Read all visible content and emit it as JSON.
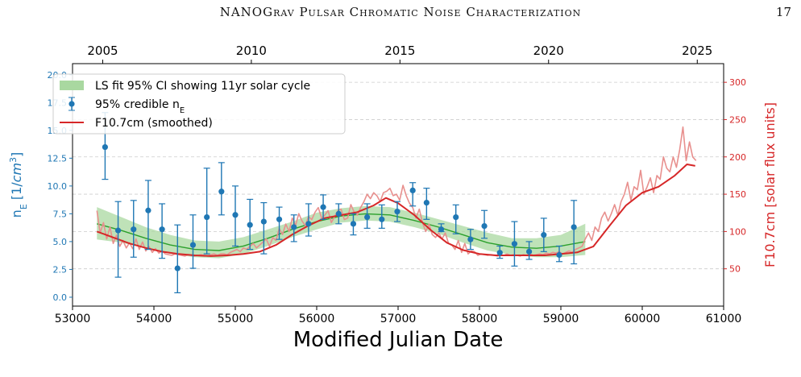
{
  "header": {
    "running_title": "NANOGrav Pulsar Chromatic Noise Characterization",
    "page_number": "17"
  },
  "chart_data": {
    "type": "scatter",
    "title": "",
    "xlabel": "Modified Julian Date",
    "ylabel_left": "n_E [1/cm^3]",
    "ylabel_right": "F10.7cm [solar flux units]",
    "xlim": [
      53000,
      61000
    ],
    "ylim_left": [
      -0.8,
      21.0
    ],
    "ylim_right": [
      0,
      325
    ],
    "xticks": [
      53000,
      54000,
      55000,
      56000,
      57000,
      58000,
      59000,
      60000,
      61000
    ],
    "yticks_left": [
      0.0,
      2.5,
      5.0,
      7.5,
      10.0,
      12.5,
      15.0,
      17.5,
      20.0
    ],
    "yticks_right": [
      50,
      100,
      150,
      200,
      250,
      300
    ],
    "top_axis": {
      "label": "",
      "ticks": [
        "2005",
        "2010",
        "2015",
        "2020",
        "2025"
      ],
      "mjd": [
        53371,
        55197,
        57023,
        58849,
        60676
      ]
    },
    "grid": true,
    "legend_position": "top-left",
    "legend": [
      {
        "label": "LS fit 95% CI showing 11yr solar cycle",
        "kind": "band",
        "color": "#a9d8a0"
      },
      {
        "label": "95% credible n",
        "subscript": "E",
        "kind": "errorbar",
        "color": "#1f77b4"
      },
      {
        "label": "F10.7cm (smoothed)",
        "kind": "line",
        "color": "#d62728"
      }
    ],
    "series": [
      {
        "name": "95% credible nE",
        "axis": "left",
        "x": [
          53400,
          53560,
          53750,
          53930,
          54100,
          54290,
          54480,
          54650,
          54830,
          55000,
          55180,
          55350,
          55540,
          55720,
          55900,
          56080,
          56270,
          56450,
          56620,
          56800,
          56990,
          57180,
          57350,
          57530,
          57710,
          57890,
          58060,
          58250,
          58430,
          58610,
          58790,
          58980,
          59160
        ],
        "y": [
          13.5,
          6.0,
          6.1,
          7.8,
          6.1,
          2.6,
          4.7,
          7.2,
          9.5,
          7.4,
          6.5,
          6.8,
          7.0,
          6.3,
          6.6,
          8.1,
          7.5,
          6.6,
          7.2,
          7.0,
          7.7,
          9.6,
          8.5,
          6.1,
          7.2,
          5.2,
          6.4,
          4.0,
          4.8,
          4.1,
          5.6,
          3.8,
          6.3
        ],
        "lower": [
          10.6,
          1.8,
          3.6,
          4.3,
          3.5,
          0.4,
          2.6,
          3.9,
          7.4,
          4.6,
          4.3,
          3.9,
          5.2,
          5.0,
          5.5,
          7.0,
          6.6,
          5.6,
          6.2,
          6.2,
          6.8,
          8.2,
          7.0,
          5.9,
          5.7,
          4.3,
          5.3,
          3.5,
          2.8,
          3.4,
          4.1,
          3.2,
          3.0
        ],
        "upper": [
          16.6,
          8.6,
          8.7,
          10.5,
          8.4,
          6.5,
          7.4,
          11.6,
          12.1,
          10.0,
          8.8,
          8.5,
          8.1,
          7.4,
          8.4,
          9.2,
          8.4,
          7.5,
          8.4,
          8.3,
          8.6,
          10.3,
          9.8,
          6.6,
          8.3,
          6.1,
          7.8,
          4.6,
          6.8,
          5.0,
          7.1,
          4.6,
          8.7
        ],
        "color": "#1f77b4"
      },
      {
        "name": "LS fit",
        "axis": "left",
        "x": [
          53300,
          53600,
          53900,
          54200,
          54500,
          54800,
          55100,
          55400,
          55700,
          56000,
          56300,
          56600,
          56900,
          57200,
          57500,
          57800,
          58100,
          58400,
          58700,
          59000,
          59300
        ],
        "y": [
          6.6,
          6.0,
          5.3,
          4.7,
          4.3,
          4.2,
          4.6,
          5.3,
          6.1,
          6.8,
          7.3,
          7.5,
          7.4,
          6.9,
          6.3,
          5.6,
          4.9,
          4.5,
          4.4,
          4.6,
          5.0
        ],
        "lower": [
          5.2,
          4.9,
          4.4,
          3.9,
          3.6,
          3.5,
          3.9,
          4.6,
          5.4,
          6.1,
          6.7,
          6.9,
          6.8,
          6.3,
          5.7,
          4.9,
          4.2,
          3.8,
          3.6,
          3.6,
          3.8
        ],
        "upper": [
          8.1,
          7.2,
          6.3,
          5.6,
          5.1,
          5.0,
          5.4,
          6.1,
          6.8,
          7.6,
          8.0,
          8.2,
          8.1,
          7.6,
          7.0,
          6.4,
          5.8,
          5.3,
          5.3,
          5.6,
          6.6
        ],
        "color": "#2ca02c",
        "band_color": "#a9d8a0"
      },
      {
        "name": "F10.7cm (monthly)",
        "axis": "right",
        "x": [
          53300,
          53340,
          53380,
          53420,
          53460,
          53500,
          53540,
          53580,
          53620,
          53660,
          53700,
          53740,
          53780,
          53820,
          53860,
          53900,
          53940,
          53980,
          54020,
          54060,
          54100,
          54140,
          54180,
          54220,
          54260,
          54300,
          54340,
          54380,
          54420,
          54460,
          54500,
          54540,
          54580,
          54620,
          54660,
          54700,
          54740,
          54780,
          54820,
          54860,
          54900,
          54940,
          54980,
          55020,
          55060,
          55100,
          55140,
          55180,
          55220,
          55260,
          55300,
          55340,
          55380,
          55420,
          55460,
          55500,
          55540,
          55580,
          55620,
          55660,
          55700,
          55740,
          55780,
          55820,
          55860,
          55900,
          55940,
          55980,
          56020,
          56060,
          56100,
          56140,
          56180,
          56220,
          56260,
          56300,
          56340,
          56380,
          56420,
          56460,
          56500,
          56540,
          56580,
          56620,
          56660,
          56700,
          56740,
          56780,
          56820,
          56860,
          56900,
          56940,
          56980,
          57020,
          57060,
          57100,
          57140,
          57180,
          57220,
          57260,
          57300,
          57340,
          57380,
          57420,
          57460,
          57500,
          57540,
          57580,
          57620,
          57660,
          57700,
          57740,
          57780,
          57820,
          57860,
          57900,
          57940,
          57980,
          58020,
          58060,
          58100,
          58140,
          58180,
          58220,
          58260,
          58300,
          58340,
          58380,
          58420,
          58460,
          58500,
          58540,
          58580,
          58620,
          58660,
          58700,
          58740,
          58780,
          58820,
          58860,
          58900,
          58940,
          58980,
          59020,
          59060,
          59100,
          59140,
          59180,
          59220,
          59260,
          59300,
          59340,
          59380,
          59420,
          59460,
          59500,
          59540,
          59580,
          59620,
          59660,
          59700,
          59740,
          59780,
          59820,
          59860,
          59900,
          59940,
          59980,
          60020,
          60060,
          60100,
          60140,
          60180,
          60220,
          60260,
          60300,
          60340,
          60380,
          60420,
          60460,
          60500,
          60540,
          60580,
          60620,
          60660
        ],
        "y": [
          128,
          98,
          112,
          90,
          106,
          84,
          95,
          80,
          88,
          78,
          85,
          77,
          90,
          76,
          86,
          74,
          80,
          72,
          77,
          71,
          74,
          70,
          69,
          68,
          70,
          69,
          68,
          67,
          69,
          68,
          67,
          68,
          69,
          68,
          67,
          69,
          70,
          68,
          70,
          70,
          69,
          72,
          74,
          76,
          73,
          78,
          76,
          80,
          84,
          78,
          82,
          86,
          90,
          80,
          92,
          88,
          104,
          96,
          110,
          100,
          118,
          108,
          124,
          114,
          108,
          120,
          116,
          126,
          132,
          118,
          122,
          128,
          112,
          120,
          128,
          130,
          116,
          118,
          136,
          126,
          122,
          132,
          140,
          150,
          144,
          152,
          148,
          140,
          152,
          154,
          158,
          148,
          150,
          142,
          162,
          148,
          138,
          132,
          118,
          130,
          112,
          100,
          110,
          96,
          92,
          98,
          90,
          98,
          84,
          82,
          76,
          88,
          72,
          84,
          70,
          74,
          73,
          68,
          70,
          69,
          68,
          69,
          68,
          67,
          69,
          68,
          70,
          68,
          69,
          68,
          67,
          69,
          68,
          70,
          68,
          69,
          70,
          69,
          71,
          70,
          72,
          71,
          73,
          70,
          72,
          74,
          72,
          76,
          78,
          80,
          90,
          98,
          88,
          106,
          100,
          118,
          126,
          114,
          124,
          136,
          122,
          140,
          150,
          166,
          142,
          160,
          156,
          182,
          150,
          160,
          172,
          152,
          175,
          170,
          200,
          185,
          180,
          200,
          186,
          210,
          240,
          195,
          220,
          200,
          195
        ],
        "color": "#e8908e"
      },
      {
        "name": "F10.7cm (smoothed)",
        "axis": "right",
        "x": [
          53300,
          53500,
          53700,
          53900,
          54100,
          54300,
          54500,
          54700,
          54900,
          55100,
          55300,
          55500,
          55700,
          55900,
          56100,
          56300,
          56500,
          56700,
          56850,
          57000,
          57200,
          57400,
          57600,
          57800,
          58000,
          58200,
          58400,
          58600,
          58800,
          59000,
          59200,
          59400,
          59600,
          59800,
          60000,
          60200,
          60400,
          60550,
          60650
        ],
        "y": [
          100,
          92,
          84,
          78,
          73,
          70,
          68,
          67,
          68,
          70,
          73,
          82,
          96,
          108,
          118,
          122,
          126,
          135,
          145,
          138,
          122,
          102,
          85,
          75,
          70,
          68,
          68,
          68,
          68,
          70,
          72,
          80,
          108,
          135,
          152,
          160,
          175,
          190,
          188
        ],
        "color": "#d62728"
      }
    ]
  }
}
